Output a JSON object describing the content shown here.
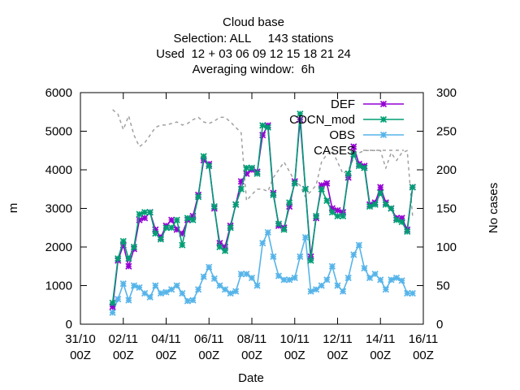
{
  "chart_data": {
    "type": "line",
    "title_lines": [
      "Cloud base",
      "Selection: ALL     143 stations",
      "Used  12 + 03 06 09 12 15 18 21 24",
      "Averaging window:  6h"
    ],
    "xlabel": "Date",
    "ylabel": "m",
    "y2label": "No cases",
    "xlim": [
      0,
      16
    ],
    "ylim": [
      0,
      6000
    ],
    "y2lim": [
      0,
      300
    ],
    "x_ticks": [
      {
        "x": 0,
        "l1": "31/10",
        "l2": "00Z"
      },
      {
        "x": 2,
        "l1": "02/11",
        "l2": "00Z"
      },
      {
        "x": 4,
        "l1": "04/11",
        "l2": "00Z"
      },
      {
        "x": 6,
        "l1": "06/11",
        "l2": "00Z"
      },
      {
        "x": 8,
        "l1": "08/11",
        "l2": "00Z"
      },
      {
        "x": 10,
        "l1": "10/11",
        "l2": "00Z"
      },
      {
        "x": 12,
        "l1": "12/11",
        "l2": "00Z"
      },
      {
        "x": 14,
        "l1": "14/11",
        "l2": "00Z"
      },
      {
        "x": 16,
        "l1": "16/11",
        "l2": "00Z"
      }
    ],
    "y_ticks": [
      0,
      1000,
      2000,
      3000,
      4000,
      5000,
      6000
    ],
    "y2_ticks": [
      0,
      50,
      100,
      150,
      200,
      250,
      300
    ],
    "x": [
      1.5,
      1.75,
      2.0,
      2.25,
      2.5,
      2.75,
      3.0,
      3.25,
      3.5,
      3.75,
      4.0,
      4.25,
      4.5,
      4.75,
      5.0,
      5.25,
      5.5,
      5.75,
      6.0,
      6.25,
      6.5,
      6.75,
      7.0,
      7.25,
      7.5,
      7.75,
      8.0,
      8.25,
      8.5,
      8.75,
      9.0,
      9.25,
      9.5,
      9.75,
      10.0,
      10.25,
      10.5,
      10.75,
      11.0,
      11.25,
      11.5,
      11.75,
      12.0,
      12.25,
      12.5,
      12.75,
      13.0,
      13.25,
      13.5,
      13.75,
      14.0,
      14.25,
      14.5,
      14.75,
      15.0,
      15.25,
      15.5
    ],
    "series": [
      {
        "name": "DEF",
        "color": "#9400d3",
        "marker": "cross",
        "values": [
          450,
          1650,
          2050,
          1500,
          1950,
          2700,
          2750,
          2900,
          2450,
          2250,
          2550,
          2700,
          2450,
          2350,
          2700,
          2800,
          3350,
          4250,
          4150,
          3000,
          2100,
          2000,
          2550,
          3100,
          3700,
          3900,
          4000,
          3950,
          4900,
          5150,
          3400,
          2550,
          2500,
          3050,
          3700,
          5300,
          3500,
          1750,
          2750,
          3600,
          3650,
          3000,
          2950,
          2900,
          3800,
          4600,
          4150,
          4100,
          3100,
          3150,
          3550,
          3150,
          3000,
          2750,
          2750,
          2450,
          3550
        ]
      },
      {
        "name": "CDCN_mod",
        "color": "#009e73",
        "marker": "star",
        "values": [
          550,
          1700,
          2150,
          1700,
          2000,
          2850,
          2900,
          2900,
          2350,
          2200,
          2500,
          2500,
          2700,
          2050,
          2750,
          2700,
          3300,
          4350,
          4100,
          3050,
          2000,
          1900,
          2500,
          3100,
          3500,
          4050,
          4050,
          3900,
          5150,
          5100,
          3350,
          2600,
          2450,
          3150,
          3650,
          5450,
          3500,
          1650,
          2800,
          3500,
          3200,
          2900,
          2800,
          2800,
          3900,
          4400,
          4100,
          4050,
          3050,
          3100,
          3400,
          3100,
          3000,
          2700,
          2650,
          2400,
          3550
        ]
      },
      {
        "name": "OBS",
        "color": "#56b4e9",
        "marker": "star",
        "values": [
          300,
          650,
          1050,
          620,
          1000,
          950,
          800,
          700,
          1000,
          800,
          830,
          900,
          1000,
          800,
          600,
          620,
          900,
          1230,
          1480,
          1180,
          1000,
          900,
          800,
          850,
          1300,
          1300,
          1200,
          1000,
          2100,
          2380,
          1750,
          1250,
          1150,
          1150,
          1200,
          1750,
          2250,
          850,
          900,
          1000,
          1150,
          1500,
          1000,
          850,
          1200,
          1800,
          2050,
          1450,
          1200,
          1300,
          1150,
          900,
          1150,
          1200,
          1130,
          800,
          800
        ]
      },
      {
        "name": "CASES",
        "color": "#a0a0a0",
        "dashed": true,
        "y_axis": "right",
        "values": [
          278,
          272,
          252,
          270,
          245,
          230,
          235,
          245,
          255,
          258,
          258,
          260,
          262,
          258,
          260,
          265,
          268,
          262,
          260,
          263,
          268,
          268,
          262,
          255,
          248,
          160,
          168,
          175,
          175,
          172,
          190,
          200,
          210,
          198,
          185,
          180,
          165,
          172,
          180,
          210,
          220,
          225,
          210,
          195,
          200,
          215,
          222,
          225,
          225,
          225,
          225,
          202,
          222,
          212,
          222,
          225,
          140
        ]
      }
    ],
    "grid": false,
    "legend_position": "top-right"
  }
}
